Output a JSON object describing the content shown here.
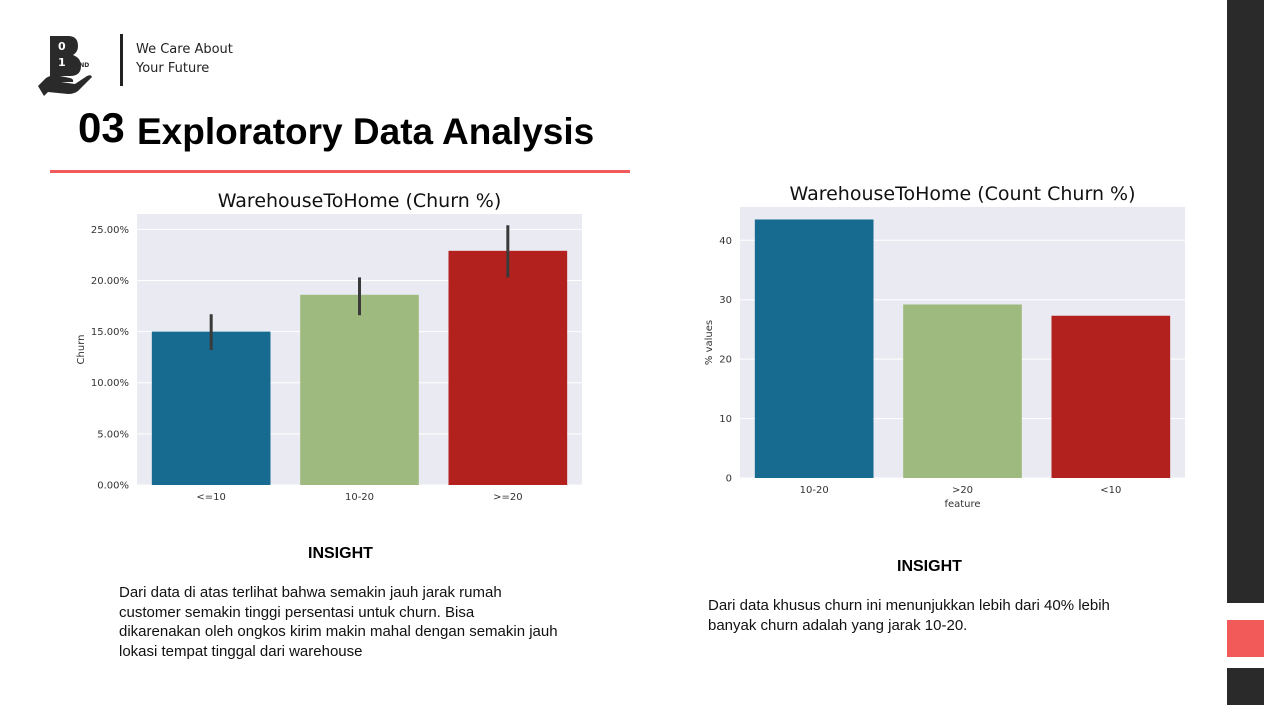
{
  "brand": {
    "logo_icon": "hand-binary-logo-icon",
    "logo_digits": [
      "0",
      "1"
    ],
    "logo_sub": "IND",
    "tagline_line1": "We Care About",
    "tagline_line2": "Your Future"
  },
  "section": {
    "number": "03",
    "title": "Exploratory Data Analysis"
  },
  "colors": {
    "accent": "#f05a5a",
    "bar_blue": "#176b91",
    "bar_green": "#9fba7e",
    "bar_red": "#b3211e",
    "plot_bg": "#eaeaf2",
    "dark_bar": "#2a2a2a"
  },
  "chart_data": [
    {
      "type": "bar",
      "title": "WarehouseToHome (Churn %)",
      "xlabel": "",
      "ylabel": "Churn",
      "categories": [
        "<=10",
        "10-20",
        ">=20"
      ],
      "values": [
        0.15,
        0.186,
        0.229
      ],
      "error_low": [
        0.132,
        0.166,
        0.203
      ],
      "error_high": [
        0.167,
        0.203,
        0.254
      ],
      "ylim": [
        0,
        0.265
      ],
      "yticks": [
        0,
        0.05,
        0.1,
        0.15,
        0.2,
        0.25
      ],
      "ytick_labels": [
        "0.00%",
        "5.00%",
        "10.00%",
        "15.00%",
        "20.00%",
        "25.00%"
      ],
      "grid": true
    },
    {
      "type": "bar",
      "title": "WarehouseToHome (Count Churn %)",
      "xlabel": "feature",
      "ylabel": "% values",
      "categories": [
        "10-20",
        ">20",
        "<10"
      ],
      "values": [
        43.5,
        29.2,
        27.3
      ],
      "ylim": [
        0,
        45.6
      ],
      "yticks": [
        0,
        10,
        20,
        30,
        40
      ],
      "ytick_labels": [
        "0",
        "10",
        "20",
        "30",
        "40"
      ],
      "grid": true
    }
  ],
  "insights": [
    {
      "heading": "INSIGHT",
      "text": "Dari data di atas terlihat bahwa semakin jauh jarak rumah customer semakin tinggi persentasi untuk churn. Bisa dikarenakan oleh ongkos kirim makin mahal dengan semakin jauh lokasi tempat tinggal dari warehouse"
    },
    {
      "heading": "INSIGHT",
      "text": "Dari data khusus churn ini menunjukkan lebih dari 40% lebih banyak churn adalah yang jarak 10-20."
    }
  ]
}
